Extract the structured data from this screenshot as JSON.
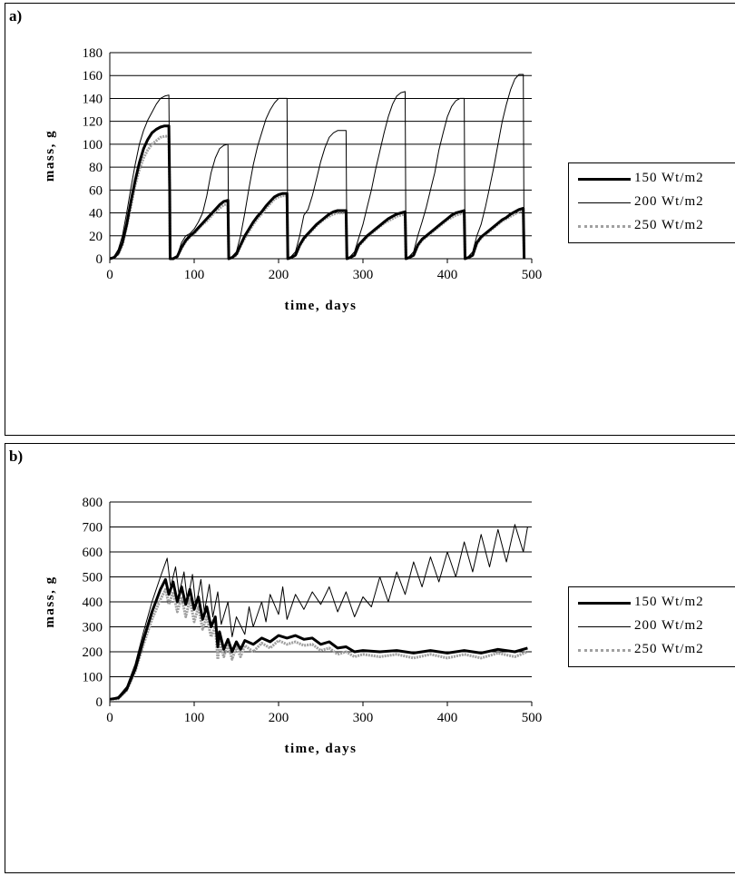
{
  "panels": [
    {
      "label": "a)"
    },
    {
      "label": "b)"
    }
  ],
  "chart_data": [
    {
      "type": "line",
      "title": "",
      "xlabel": "time, days",
      "ylabel": "mass, g",
      "xlim": [
        0,
        500
      ],
      "ylim": [
        0,
        180
      ],
      "xticks": [
        0,
        100,
        200,
        300,
        400,
        500
      ],
      "yticks": [
        0,
        20,
        40,
        60,
        80,
        100,
        120,
        140,
        160,
        180
      ],
      "grid": "horizontal",
      "legend": "right",
      "series": [
        {
          "name": "150 Wt/m2",
          "color": "#000000",
          "style": "thick",
          "x": [
            0,
            5,
            10,
            15,
            20,
            25,
            30,
            35,
            40,
            45,
            50,
            55,
            60,
            65,
            70,
            71,
            71.5,
            75,
            80,
            85,
            90,
            95,
            100,
            105,
            110,
            115,
            120,
            125,
            130,
            135,
            140,
            141,
            145,
            150,
            155,
            160,
            165,
            170,
            175,
            180,
            185,
            190,
            195,
            200,
            205,
            210,
            211,
            215,
            220,
            225,
            230,
            235,
            240,
            245,
            250,
            255,
            260,
            265,
            270,
            275,
            280,
            281,
            285,
            290,
            295,
            300,
            305,
            310,
            315,
            320,
            325,
            330,
            335,
            340,
            345,
            350,
            351,
            355,
            360,
            365,
            370,
            375,
            380,
            385,
            390,
            395,
            400,
            405,
            410,
            415,
            420,
            421,
            425,
            430,
            435,
            440,
            445,
            450,
            455,
            460,
            465,
            470,
            475,
            480,
            485,
            490,
            491
          ],
          "y": [
            0,
            1,
            5,
            14,
            30,
            50,
            68,
            84,
            96,
            104,
            110,
            113,
            115,
            116,
            116,
            60,
            0,
            0,
            2,
            10,
            16,
            20,
            23,
            27,
            31,
            35,
            39,
            43,
            47,
            50,
            51,
            0,
            1,
            4,
            12,
            20,
            26,
            32,
            37,
            41,
            46,
            50,
            54,
            56,
            57,
            57,
            0,
            1,
            3,
            12,
            18,
            22,
            26,
            30,
            33,
            36,
            39,
            41,
            42,
            42,
            42,
            0,
            1,
            3,
            12,
            16,
            20,
            23,
            26,
            29,
            32,
            35,
            37,
            39,
            40,
            41,
            0,
            1,
            3,
            12,
            17,
            20,
            23,
            26,
            29,
            32,
            35,
            38,
            40,
            41,
            42,
            0,
            1,
            3,
            14,
            19,
            22,
            25,
            28,
            31,
            34,
            36,
            39,
            41,
            43,
            44,
            0
          ]
        },
        {
          "name": "200 Wt/m2",
          "color": "#000000",
          "style": "thin",
          "x": [
            0,
            5,
            10,
            15,
            20,
            25,
            30,
            35,
            40,
            45,
            50,
            55,
            60,
            65,
            70,
            71,
            71.5,
            75,
            80,
            85,
            90,
            95,
            100,
            105,
            110,
            115,
            120,
            125,
            130,
            135,
            140,
            141,
            145,
            150,
            155,
            160,
            165,
            170,
            175,
            180,
            185,
            190,
            195,
            200,
            205,
            210,
            211,
            215,
            220,
            225,
            230,
            235,
            240,
            245,
            250,
            255,
            260,
            265,
            270,
            275,
            280,
            281,
            285,
            290,
            295,
            300,
            305,
            310,
            315,
            320,
            325,
            330,
            335,
            340,
            345,
            350,
            351,
            355,
            360,
            365,
            370,
            375,
            380,
            385,
            390,
            395,
            400,
            405,
            410,
            415,
            420,
            421,
            425,
            430,
            435,
            440,
            445,
            450,
            455,
            460,
            465,
            470,
            475,
            480,
            485,
            490,
            491
          ],
          "y": [
            0,
            2,
            8,
            20,
            40,
            62,
            82,
            100,
            112,
            121,
            128,
            135,
            140,
            142,
            143,
            60,
            0,
            0,
            3,
            14,
            20,
            22,
            26,
            32,
            40,
            55,
            75,
            88,
            96,
            99,
            100,
            0,
            2,
            6,
            20,
            40,
            62,
            82,
            98,
            110,
            122,
            130,
            136,
            140,
            140,
            140,
            0,
            2,
            6,
            20,
            38,
            43,
            55,
            70,
            85,
            97,
            106,
            110,
            112,
            112,
            112,
            0,
            2,
            6,
            18,
            30,
            45,
            60,
            78,
            94,
            110,
            124,
            135,
            142,
            145,
            146,
            0,
            2,
            6,
            20,
            32,
            45,
            60,
            75,
            95,
            110,
            124,
            133,
            138,
            140,
            140,
            0,
            2,
            6,
            20,
            30,
            45,
            62,
            80,
            100,
            120,
            135,
            148,
            157,
            161,
            161,
            0
          ]
        },
        {
          "name": "250 Wt/m2",
          "color": "#a0a0a0",
          "style": "dotted-thick",
          "x": [
            0,
            5,
            10,
            15,
            20,
            25,
            30,
            35,
            40,
            45,
            50,
            55,
            60,
            65,
            70,
            71,
            71.5,
            75,
            80,
            85,
            90,
            95,
            100,
            105,
            110,
            115,
            120,
            125,
            130,
            135,
            140,
            141,
            145,
            150,
            155,
            160,
            165,
            170,
            175,
            180,
            185,
            190,
            195,
            200,
            205,
            210,
            211,
            215,
            220,
            225,
            230,
            235,
            240,
            245,
            250,
            255,
            260,
            265,
            270,
            275,
            280,
            281,
            285,
            290,
            295,
            300,
            305,
            310,
            315,
            320,
            325,
            330,
            335,
            340,
            345,
            350,
            351,
            355,
            360,
            365,
            370,
            375,
            380,
            385,
            390,
            395,
            400,
            405,
            410,
            415,
            420,
            421,
            425,
            430,
            435,
            440,
            445,
            450,
            455,
            460,
            465,
            470,
            475,
            480,
            485,
            490,
            491
          ],
          "y": [
            0,
            1,
            4,
            12,
            28,
            46,
            64,
            78,
            88,
            95,
            100,
            103,
            106,
            107,
            107,
            60,
            0,
            0,
            2,
            9,
            15,
            19,
            22,
            26,
            30,
            33,
            37,
            41,
            44,
            47,
            48,
            0,
            1,
            3,
            11,
            18,
            24,
            30,
            35,
            39,
            44,
            48,
            52,
            54,
            55,
            55,
            0,
            1,
            3,
            11,
            17,
            21,
            25,
            29,
            32,
            35,
            37,
            39,
            40,
            40,
            40,
            0,
            1,
            3,
            11,
            15,
            19,
            22,
            25,
            28,
            31,
            33,
            35,
            37,
            38,
            39,
            0,
            1,
            3,
            11,
            16,
            19,
            22,
            25,
            28,
            31,
            34,
            36,
            38,
            39,
            40,
            0,
            1,
            3,
            13,
            18,
            21,
            24,
            27,
            30,
            33,
            35,
            37,
            39,
            41,
            42,
            0
          ]
        }
      ]
    },
    {
      "type": "line",
      "title": "",
      "xlabel": "time, days",
      "ylabel": "mass, g",
      "xlim": [
        0,
        500
      ],
      "ylim": [
        0,
        800
      ],
      "xticks": [
        0,
        100,
        200,
        300,
        400,
        500
      ],
      "yticks": [
        0,
        100,
        200,
        300,
        400,
        500,
        600,
        700,
        800
      ],
      "grid": "horizontal",
      "legend": "right",
      "series": [
        {
          "name": "150 Wt/m2",
          "color": "#000000",
          "style": "thick",
          "x": [
            0,
            10,
            20,
            30,
            40,
            50,
            60,
            66,
            70,
            75,
            80,
            85,
            90,
            95,
            100,
            105,
            110,
            115,
            120,
            125,
            128,
            130,
            135,
            140,
            145,
            150,
            155,
            160,
            170,
            180,
            190,
            200,
            210,
            220,
            230,
            240,
            250,
            260,
            270,
            280,
            290,
            300,
            320,
            340,
            360,
            380,
            400,
            420,
            440,
            460,
            480,
            495
          ],
          "y": [
            10,
            15,
            50,
            130,
            250,
            360,
            450,
            490,
            430,
            480,
            400,
            460,
            390,
            450,
            370,
            420,
            330,
            380,
            300,
            340,
            220,
            280,
            210,
            250,
            200,
            240,
            210,
            245,
            230,
            255,
            240,
            265,
            255,
            265,
            250,
            255,
            230,
            240,
            215,
            220,
            200,
            205,
            200,
            205,
            195,
            205,
            195,
            205,
            195,
            210,
            200,
            215
          ]
        },
        {
          "name": "200 Wt/m2",
          "color": "#000000",
          "style": "thin",
          "x": [
            0,
            10,
            20,
            30,
            40,
            50,
            60,
            68,
            72,
            78,
            82,
            88,
            92,
            98,
            102,
            108,
            112,
            118,
            122,
            128,
            132,
            140,
            145,
            150,
            160,
            165,
            170,
            180,
            185,
            190,
            200,
            205,
            210,
            220,
            230,
            240,
            250,
            260,
            270,
            280,
            290,
            300,
            310,
            320,
            330,
            340,
            350,
            360,
            370,
            380,
            390,
            400,
            410,
            420,
            430,
            440,
            450,
            460,
            470,
            480,
            490,
            495
          ],
          "y": [
            10,
            20,
            60,
            150,
            280,
            400,
            500,
            575,
            460,
            540,
            430,
            520,
            400,
            510,
            380,
            490,
            360,
            470,
            340,
            440,
            310,
            400,
            260,
            340,
            270,
            380,
            300,
            400,
            320,
            430,
            350,
            460,
            330,
            430,
            370,
            440,
            390,
            460,
            360,
            440,
            340,
            420,
            380,
            500,
            400,
            520,
            430,
            560,
            460,
            580,
            480,
            600,
            500,
            640,
            520,
            670,
            540,
            690,
            560,
            710,
            600,
            700
          ]
        },
        {
          "name": "250 Wt/m2",
          "color": "#a0a0a0",
          "style": "dotted-thick",
          "x": [
            0,
            10,
            20,
            30,
            40,
            50,
            60,
            66,
            70,
            75,
            80,
            85,
            90,
            95,
            100,
            105,
            110,
            115,
            120,
            125,
            128,
            130,
            135,
            140,
            145,
            150,
            155,
            160,
            170,
            180,
            190,
            200,
            210,
            220,
            230,
            240,
            250,
            260,
            270,
            280,
            290,
            300,
            320,
            340,
            360,
            380,
            400,
            420,
            440,
            460,
            480,
            495
          ],
          "y": [
            10,
            12,
            45,
            120,
            230,
            330,
            410,
            450,
            390,
            440,
            360,
            420,
            340,
            410,
            320,
            380,
            290,
            340,
            260,
            300,
            170,
            240,
            180,
            230,
            170,
            220,
            180,
            225,
            200,
            235,
            215,
            245,
            230,
            240,
            225,
            230,
            205,
            215,
            190,
            200,
            180,
            190,
            180,
            190,
            175,
            190,
            175,
            190,
            175,
            195,
            180,
            200
          ]
        }
      ]
    }
  ]
}
